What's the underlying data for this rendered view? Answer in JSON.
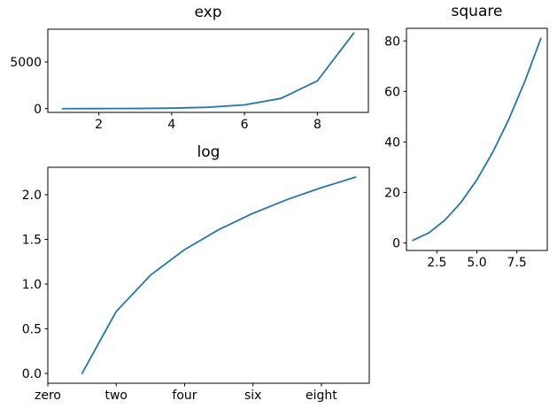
{
  "figure": {
    "background": "#ffffff",
    "axis_color": "#000000",
    "text_color": "#000000",
    "line_color": "#1f77b4"
  },
  "chart_data": [
    {
      "id": "exp",
      "type": "line",
      "title": "exp",
      "xlabel": "",
      "ylabel": "",
      "x": [
        1,
        2,
        3,
        4,
        5,
        6,
        7,
        8,
        9
      ],
      "y": [
        2.72,
        7.39,
        20.09,
        54.6,
        148.41,
        403.43,
        1096.63,
        2980.96,
        8103.08
      ],
      "xlim": [
        0.6,
        9.4
      ],
      "ylim": [
        -402.3,
        8508.1
      ],
      "xtick_values": [
        2,
        4,
        6,
        8
      ],
      "xtick_labels": [
        "2",
        "4",
        "6",
        "8"
      ],
      "ytick_values": [
        0,
        5000
      ],
      "ytick_labels": [
        "0",
        "5000"
      ],
      "grid": false,
      "legend": null
    },
    {
      "id": "log",
      "type": "line",
      "title": "log",
      "xlabel": "",
      "ylabel": "",
      "x": [
        1,
        2,
        3,
        4,
        5,
        6,
        7,
        8,
        9
      ],
      "y": [
        0.0,
        0.693,
        1.099,
        1.386,
        1.609,
        1.792,
        1.946,
        2.079,
        2.197
      ],
      "xlim": [
        0,
        9.4
      ],
      "ylim": [
        -0.11,
        2.307
      ],
      "xtick_values": [
        0,
        2,
        4,
        6,
        8
      ],
      "xtick_labels": [
        "zero",
        "two",
        "four",
        "six",
        "eight"
      ],
      "ytick_values": [
        0.0,
        0.5,
        1.0,
        1.5,
        2.0
      ],
      "ytick_labels": [
        "0.0",
        "0.5",
        "1.0",
        "1.5",
        "2.0"
      ],
      "grid": false,
      "legend": null
    },
    {
      "id": "square",
      "type": "line",
      "title": "square",
      "xlabel": "",
      "ylabel": "",
      "x": [
        1,
        2,
        3,
        4,
        5,
        6,
        7,
        8,
        9
      ],
      "y": [
        1,
        4,
        9,
        16,
        25,
        36,
        49,
        64,
        81
      ],
      "xlim": [
        0.6,
        9.4
      ],
      "ylim": [
        -3,
        85
      ],
      "xtick_values": [
        2.5,
        5.0,
        7.5
      ],
      "xtick_labels": [
        "2.5",
        "5.0",
        "7.5"
      ],
      "ytick_values": [
        0,
        20,
        40,
        60,
        80
      ],
      "ytick_labels": [
        "0",
        "20",
        "40",
        "60",
        "80"
      ],
      "grid": false,
      "legend": null
    }
  ]
}
